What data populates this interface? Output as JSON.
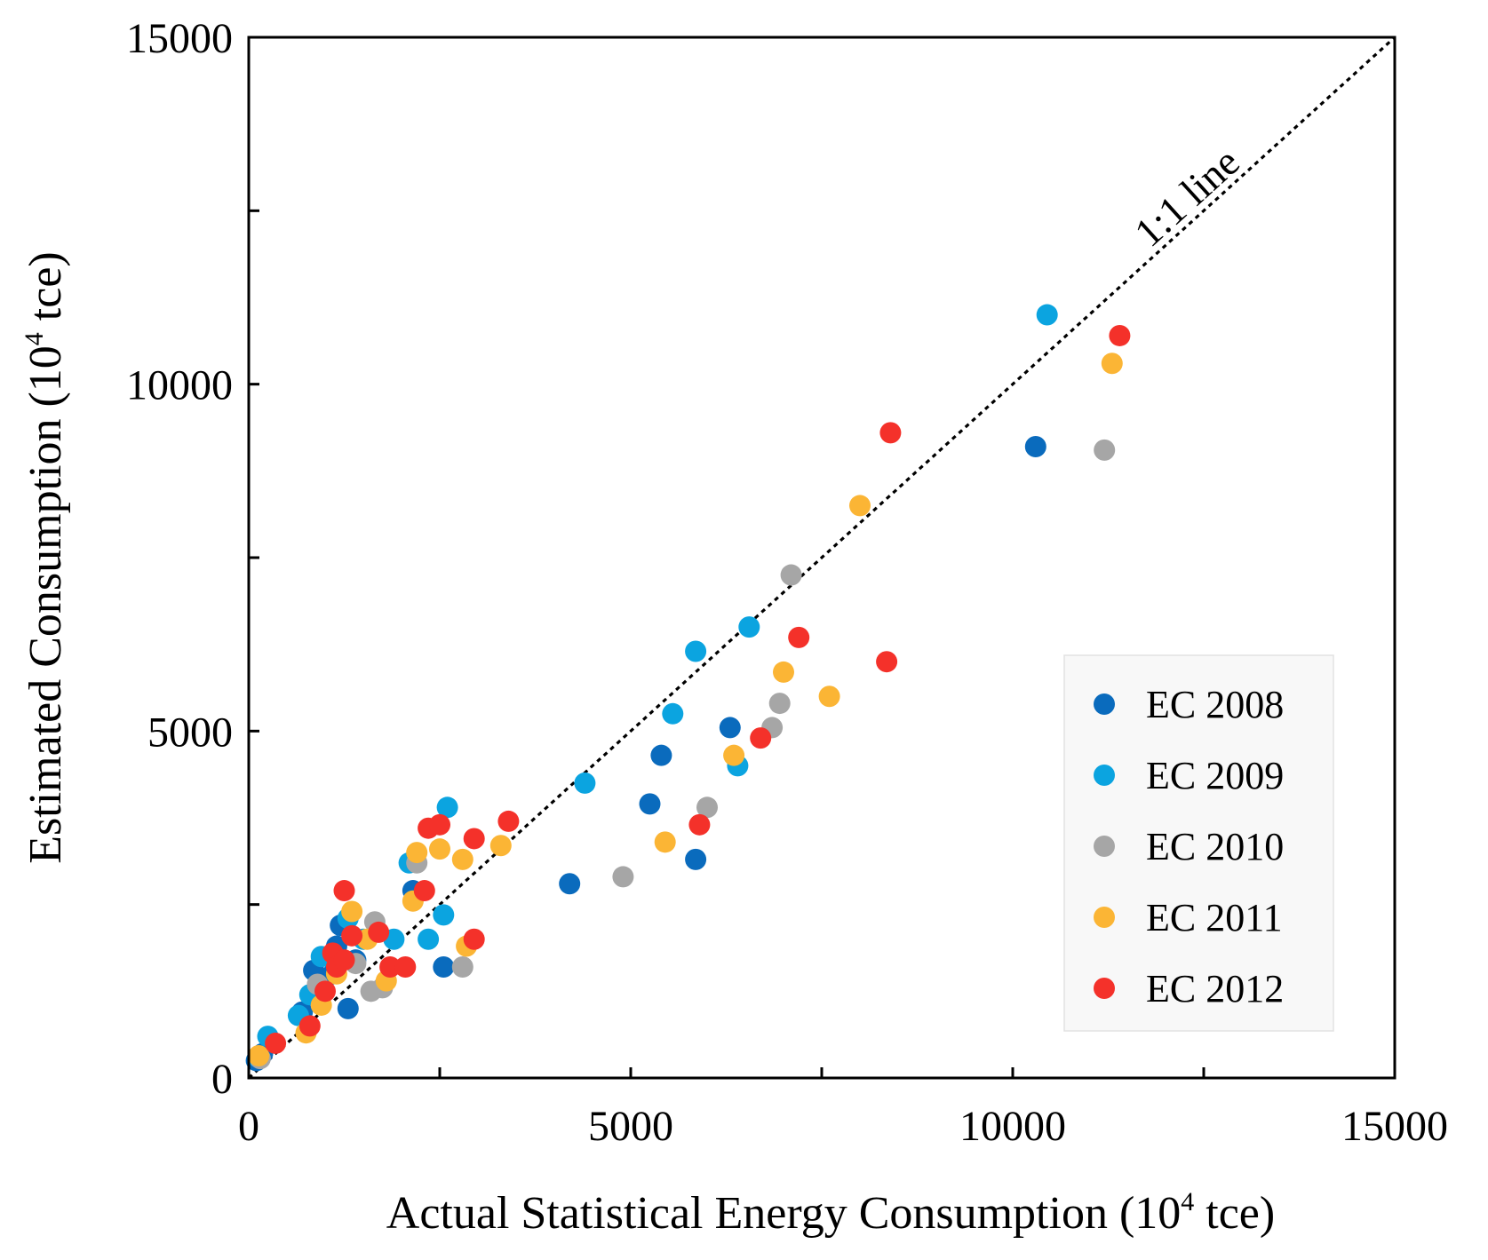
{
  "chart_data": {
    "type": "scatter",
    "xlabel": "Actual Statistical Energy Consumption (10",
    "xlabel_sup": "4",
    "xlabel_tail": " tce)",
    "ylabel": "Estimated Consumption (10",
    "ylabel_sup": "4",
    "ylabel_tail": " tce)",
    "xlim": [
      0,
      15000
    ],
    "ylim": [
      0,
      15000
    ],
    "x_ticks": [
      "0",
      "5000",
      "10000",
      "15000"
    ],
    "y_ticks": [
      "0",
      "5000",
      "10000",
      "15000"
    ],
    "reference_line": {
      "label": "1:1 line",
      "from": [
        0,
        0
      ],
      "to": [
        15000,
        15000
      ],
      "style": "dotted"
    },
    "legend_position": "bottom-right",
    "series": [
      {
        "name": "EC 2008",
        "color": "#0a6bbd",
        "points": [
          [
            100,
            250
          ],
          [
            180,
            350
          ],
          [
            700,
            950
          ],
          [
            850,
            1550
          ],
          [
            1100,
            1500
          ],
          [
            1150,
            1900
          ],
          [
            1300,
            1000
          ],
          [
            1200,
            2200
          ],
          [
            1400,
            1700
          ],
          [
            2150,
            2700
          ],
          [
            2550,
            1600
          ],
          [
            4200,
            2800
          ],
          [
            5250,
            3950
          ],
          [
            5400,
            4650
          ],
          [
            5850,
            3150
          ],
          [
            6300,
            5050
          ],
          [
            10300,
            9100
          ]
        ]
      },
      {
        "name": "EC 2009",
        "color": "#0ba4e0",
        "points": [
          [
            120,
            300
          ],
          [
            250,
            600
          ],
          [
            650,
            900
          ],
          [
            800,
            1200
          ],
          [
            950,
            1750
          ],
          [
            1300,
            2300
          ],
          [
            1500,
            2000
          ],
          [
            1900,
            2000
          ],
          [
            2100,
            3100
          ],
          [
            2350,
            2000
          ],
          [
            2550,
            2350
          ],
          [
            2600,
            3900
          ],
          [
            4400,
            4250
          ],
          [
            5550,
            5250
          ],
          [
            5850,
            6150
          ],
          [
            6400,
            4500
          ],
          [
            6550,
            6500
          ],
          [
            10450,
            11000
          ]
        ]
      },
      {
        "name": "EC 2010",
        "color": "#a6a6a6",
        "points": [
          [
            150,
            280
          ],
          [
            900,
            1350
          ],
          [
            1400,
            1650
          ],
          [
            1600,
            1250
          ],
          [
            1650,
            2250
          ],
          [
            1750,
            1300
          ],
          [
            2200,
            3100
          ],
          [
            2800,
            1600
          ],
          [
            4900,
            2900
          ],
          [
            6000,
            3900
          ],
          [
            6850,
            5050
          ],
          [
            6950,
            5400
          ],
          [
            7100,
            7250
          ],
          [
            11200,
            9050
          ]
        ]
      },
      {
        "name": "EC 2011",
        "color": "#fbb535",
        "points": [
          [
            130,
            320
          ],
          [
            750,
            650
          ],
          [
            950,
            1050
          ],
          [
            1150,
            1500
          ],
          [
            1350,
            2400
          ],
          [
            1550,
            2000
          ],
          [
            1800,
            1400
          ],
          [
            2150,
            2550
          ],
          [
            2200,
            3250
          ],
          [
            2500,
            3300
          ],
          [
            2800,
            3150
          ],
          [
            2850,
            1900
          ],
          [
            3300,
            3350
          ],
          [
            5450,
            3400
          ],
          [
            6350,
            4650
          ],
          [
            7000,
            5850
          ],
          [
            7600,
            5500
          ],
          [
            8000,
            8250
          ],
          [
            11300,
            10300
          ]
        ]
      },
      {
        "name": "EC 2012",
        "color": "#f4312a",
        "points": [
          [
            350,
            500
          ],
          [
            800,
            750
          ],
          [
            1000,
            1250
          ],
          [
            1100,
            1800
          ],
          [
            1150,
            1600
          ],
          [
            1250,
            1700
          ],
          [
            1250,
            2700
          ],
          [
            1350,
            2050
          ],
          [
            1700,
            2100
          ],
          [
            1850,
            1600
          ],
          [
            2050,
            1600
          ],
          [
            2300,
            2700
          ],
          [
            2350,
            3600
          ],
          [
            2500,
            3650
          ],
          [
            2950,
            3450
          ],
          [
            2950,
            2000
          ],
          [
            3400,
            3700
          ],
          [
            5900,
            3650
          ],
          [
            6700,
            4900
          ],
          [
            7200,
            6350
          ],
          [
            8350,
            6000
          ],
          [
            8400,
            9300
          ],
          [
            11400,
            10700
          ]
        ]
      }
    ]
  }
}
